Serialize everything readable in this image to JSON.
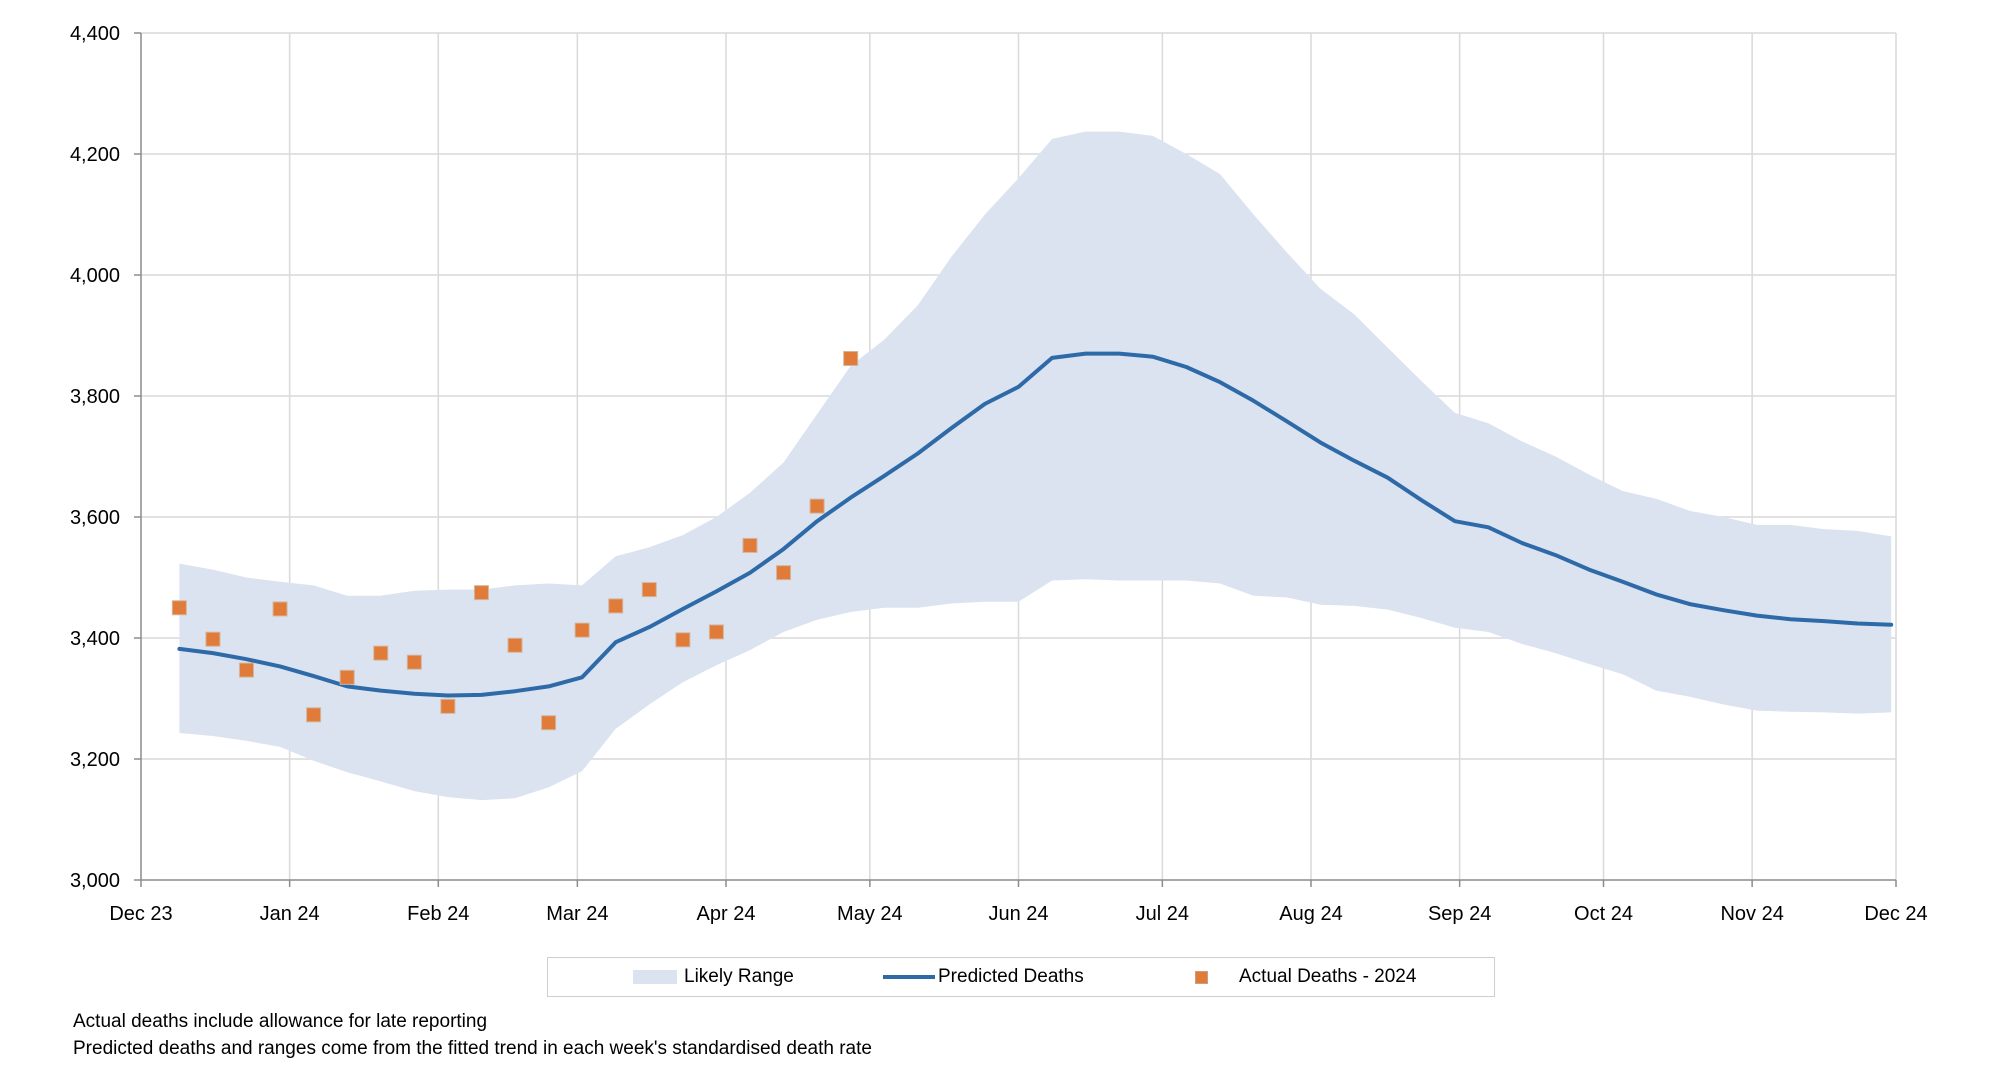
{
  "chart_data": {
    "type": "line",
    "title": "",
    "xlabel": "",
    "ylabel": "",
    "ylim": [
      3000,
      4400
    ],
    "yticks": [
      "3,000",
      "3,200",
      "3,400",
      "3,600",
      "3,800",
      "4,000",
      "4,200",
      "4,400"
    ],
    "ytick_values": [
      3000,
      3200,
      3400,
      3600,
      3800,
      4000,
      4200,
      4400
    ],
    "xlim": [
      "2023-12-01",
      "2024-12-01"
    ],
    "xticks": [
      "Dec 23",
      "Jan 24",
      "Feb 24",
      "Mar 24",
      "Apr 24",
      "May 24",
      "Jun 24",
      "Jul 24",
      "Aug 24",
      "Sep 24",
      "Oct 24",
      "Nov 24",
      "Dec 24"
    ],
    "xtick_dates": [
      "2023-12-01",
      "2024-01-01",
      "2024-02-01",
      "2024-03-01",
      "2024-04-01",
      "2024-05-01",
      "2024-06-01",
      "2024-07-01",
      "2024-08-01",
      "2024-09-01",
      "2024-10-01",
      "2024-11-01",
      "2024-12-01"
    ],
    "grid": true,
    "legend_position": "bottom",
    "series": [
      {
        "name": "Likely Range",
        "type": "area",
        "color": "#dbe3f0",
        "x": [
          "2023-12-09",
          "2023-12-16",
          "2023-12-23",
          "2023-12-30",
          "2024-01-06",
          "2024-01-13",
          "2024-01-20",
          "2024-01-27",
          "2024-02-03",
          "2024-02-10",
          "2024-02-17",
          "2024-02-24",
          "2024-03-02",
          "2024-03-09",
          "2024-03-16",
          "2024-03-23",
          "2024-03-30",
          "2024-04-06",
          "2024-04-13",
          "2024-04-20",
          "2024-04-27",
          "2024-05-04",
          "2024-05-11",
          "2024-05-18",
          "2024-05-25",
          "2024-06-01",
          "2024-06-08",
          "2024-06-15",
          "2024-06-22",
          "2024-06-29",
          "2024-07-06",
          "2024-07-13",
          "2024-07-20",
          "2024-07-27",
          "2024-08-03",
          "2024-08-10",
          "2024-08-17",
          "2024-08-24",
          "2024-08-31",
          "2024-09-07",
          "2024-09-14",
          "2024-09-21",
          "2024-09-28",
          "2024-10-05",
          "2024-10-12",
          "2024-10-19",
          "2024-10-26",
          "2024-11-02",
          "2024-11-09",
          "2024-11-16",
          "2024-11-23",
          "2024-11-30"
        ],
        "upper": [
          3523,
          3513,
          3500,
          3493,
          3487,
          3470,
          3470,
          3478,
          3480,
          3480,
          3487,
          3490,
          3487,
          3535,
          3550,
          3570,
          3600,
          3640,
          3690,
          3770,
          3850,
          3893,
          3950,
          4030,
          4100,
          4160,
          4225,
          4237,
          4237,
          4230,
          4200,
          4167,
          4100,
          4037,
          3977,
          3935,
          3880,
          3825,
          3772,
          3755,
          3725,
          3700,
          3670,
          3643,
          3630,
          3610,
          3600,
          3587,
          3587,
          3580,
          3577,
          3568
        ],
        "lower": [
          3243,
          3238,
          3230,
          3220,
          3197,
          3178,
          3163,
          3147,
          3137,
          3132,
          3135,
          3153,
          3180,
          3250,
          3290,
          3327,
          3355,
          3380,
          3410,
          3430,
          3443,
          3450,
          3450,
          3457,
          3460,
          3460,
          3495,
          3497,
          3495,
          3495,
          3495,
          3490,
          3470,
          3467,
          3455,
          3453,
          3447,
          3433,
          3417,
          3410,
          3390,
          3375,
          3357,
          3340,
          3313,
          3303,
          3290,
          3280,
          3278,
          3277,
          3275,
          3277
        ]
      },
      {
        "name": "Predicted Deaths",
        "type": "line",
        "color": "#2e6aa8",
        "x": [
          "2023-12-09",
          "2023-12-16",
          "2023-12-23",
          "2023-12-30",
          "2024-01-06",
          "2024-01-13",
          "2024-01-20",
          "2024-01-27",
          "2024-02-03",
          "2024-02-10",
          "2024-02-17",
          "2024-02-24",
          "2024-03-02",
          "2024-03-09",
          "2024-03-16",
          "2024-03-23",
          "2024-03-30",
          "2024-04-06",
          "2024-04-13",
          "2024-04-20",
          "2024-04-27",
          "2024-05-04",
          "2024-05-11",
          "2024-05-18",
          "2024-05-25",
          "2024-06-01",
          "2024-06-08",
          "2024-06-15",
          "2024-06-22",
          "2024-06-29",
          "2024-07-06",
          "2024-07-13",
          "2024-07-20",
          "2024-07-27",
          "2024-08-03",
          "2024-08-10",
          "2024-08-17",
          "2024-08-24",
          "2024-08-31",
          "2024-09-07",
          "2024-09-14",
          "2024-09-21",
          "2024-09-28",
          "2024-10-05",
          "2024-10-12",
          "2024-10-19",
          "2024-10-26",
          "2024-11-02",
          "2024-11-09",
          "2024-11-16",
          "2024-11-23",
          "2024-11-30"
        ],
        "values": [
          3382,
          3375,
          3365,
          3353,
          3337,
          3320,
          3313,
          3308,
          3305,
          3306,
          3312,
          3320,
          3335,
          3393,
          3418,
          3448,
          3477,
          3508,
          3547,
          3593,
          3632,
          3668,
          3705,
          3747,
          3787,
          3815,
          3863,
          3870,
          3870,
          3865,
          3848,
          3823,
          3792,
          3758,
          3723,
          3693,
          3665,
          3628,
          3593,
          3583,
          3557,
          3537,
          3513,
          3493,
          3472,
          3456,
          3446,
          3437,
          3431,
          3428,
          3424,
          3422
        ]
      },
      {
        "name": "Actual Deaths - 2024",
        "type": "scatter",
        "color": "#e07b39",
        "x": [
          "2023-12-09",
          "2023-12-16",
          "2023-12-23",
          "2023-12-30",
          "2024-01-06",
          "2024-01-13",
          "2024-01-20",
          "2024-01-27",
          "2024-02-03",
          "2024-02-10",
          "2024-02-17",
          "2024-02-24",
          "2024-03-02",
          "2024-03-09",
          "2024-03-16",
          "2024-03-23",
          "2024-03-30",
          "2024-04-06",
          "2024-04-13",
          "2024-04-20",
          "2024-04-27"
        ],
        "values": [
          3450,
          3398,
          3347,
          3448,
          3273,
          3335,
          3375,
          3360,
          3287,
          3475,
          3388,
          3260,
          3413,
          3453,
          3480,
          3397,
          3410,
          3553,
          3508,
          3618,
          3862
        ]
      }
    ]
  },
  "legend": {
    "items": [
      "Likely Range",
      "Predicted Deaths",
      "Actual Deaths - 2024"
    ]
  },
  "notes": [
    "Actual deaths include allowance for late reporting",
    "Predicted deaths and ranges come from the fitted trend in each week's standardised death rate"
  ]
}
